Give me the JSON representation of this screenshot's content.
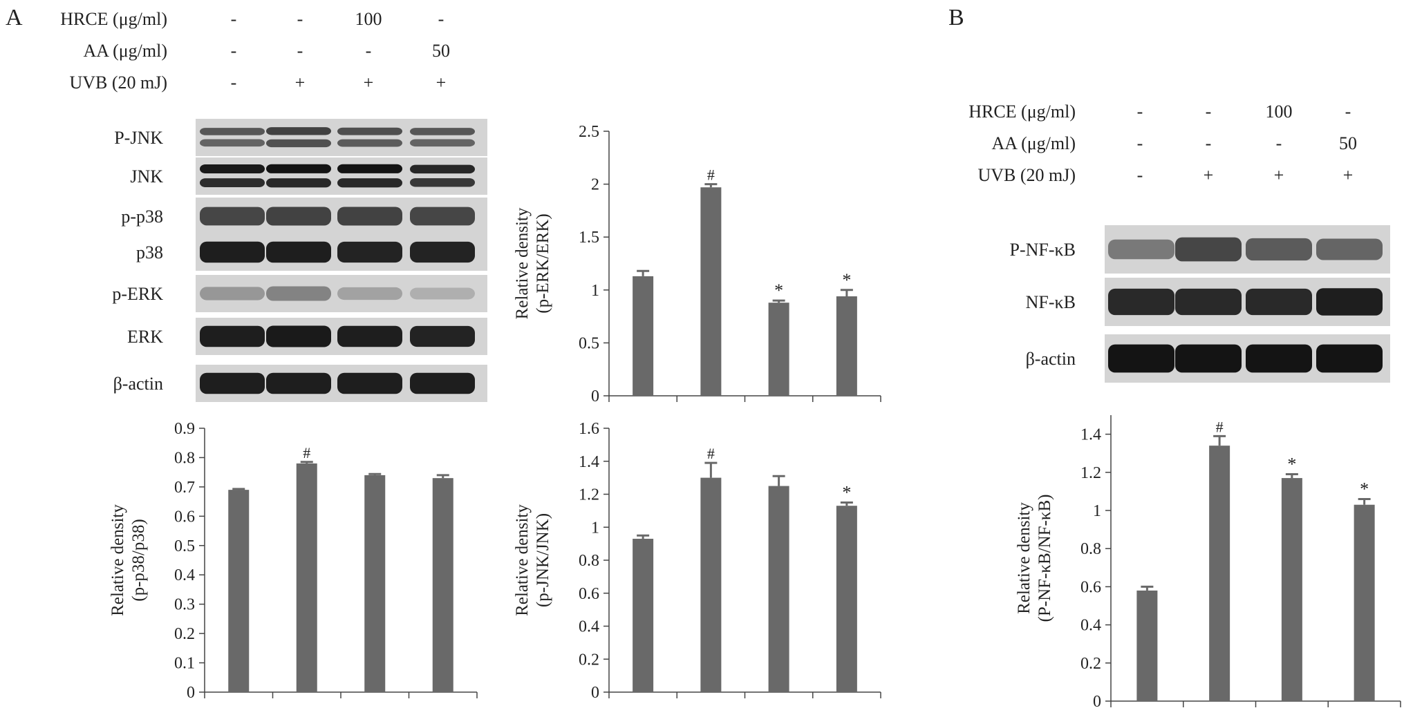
{
  "panels": {
    "A": {
      "letter": "A",
      "treatments": [
        {
          "label": "HRCE (μg/ml)",
          "values": [
            "-",
            "-",
            "100",
            "-"
          ]
        },
        {
          "label": "AA (μg/ml)",
          "values": [
            "-",
            "-",
            "-",
            "50"
          ]
        },
        {
          "label": "UVB (20 mJ)",
          "values": [
            "-",
            "+",
            "+",
            "+"
          ]
        }
      ],
      "blots": [
        {
          "label": "P-JNK",
          "intensity": [
            0.62,
            0.72,
            0.66,
            0.62
          ],
          "double": true
        },
        {
          "label": "JNK",
          "intensity": [
            0.92,
            0.95,
            0.95,
            0.86
          ],
          "double": true
        },
        {
          "label": "p-p38",
          "intensity": [
            0.7,
            0.72,
            0.72,
            0.7
          ],
          "double": false
        },
        {
          "label": "p38",
          "intensity": [
            0.9,
            0.9,
            0.88,
            0.88
          ],
          "double": false
        },
        {
          "label": "p-ERK",
          "intensity": [
            0.3,
            0.4,
            0.25,
            0.18
          ],
          "double": false
        },
        {
          "label": "ERK",
          "intensity": [
            0.9,
            0.92,
            0.9,
            0.88
          ],
          "double": false
        },
        {
          "label": "β-actin",
          "intensity": [
            0.9,
            0.9,
            0.9,
            0.9
          ],
          "double": false
        }
      ]
    },
    "B": {
      "letter": "B",
      "treatments": [
        {
          "label": "HRCE (μg/ml)",
          "values": [
            "-",
            "-",
            "100",
            "-"
          ]
        },
        {
          "label": "AA (μg/ml)",
          "values": [
            "-",
            "-",
            "-",
            "50"
          ]
        },
        {
          "label": "UVB (20 mJ)",
          "values": [
            "-",
            "+",
            "+",
            "+"
          ]
        }
      ],
      "blots": [
        {
          "label": "P-NF-κB",
          "intensity": [
            0.45,
            0.7,
            0.6,
            0.55
          ],
          "double": false
        },
        {
          "label": "NF-κB",
          "intensity": [
            0.85,
            0.85,
            0.85,
            0.9
          ],
          "double": false
        },
        {
          "label": "β-actin",
          "intensity": [
            0.95,
            0.95,
            0.95,
            0.95
          ],
          "double": false
        }
      ]
    }
  },
  "colors": {
    "bar": "#696969",
    "axis": "#444444",
    "text": "#222222",
    "blot_bg": "#d4d4d4",
    "band": "#0a0a0a"
  },
  "chart_data": [
    {
      "id": "erk",
      "type": "bar",
      "ylabel": [
        "Relative density",
        "(p-ERK/ERK)"
      ],
      "values": [
        1.13,
        1.97,
        0.88,
        0.94
      ],
      "errors": [
        0.05,
        0.03,
        0.02,
        0.06
      ],
      "marks": [
        "",
        "#",
        "*",
        "*"
      ],
      "ylim": [
        0,
        2.5
      ],
      "yticks": [
        "0",
        "0.5",
        "1",
        "1.5",
        "2",
        "2.5"
      ]
    },
    {
      "id": "p38",
      "type": "bar",
      "ylabel": [
        "Relative density",
        "(p-p38/p38)"
      ],
      "values": [
        0.69,
        0.78,
        0.74,
        0.73
      ],
      "errors": [
        0.003,
        0.005,
        0.004,
        0.01
      ],
      "marks": [
        "",
        "#",
        "",
        ""
      ],
      "ylim": [
        0,
        0.9
      ],
      "yticks": [
        "0",
        "0.1",
        "0.2",
        "0.3",
        "0.4",
        "0.5",
        "0.6",
        "0.7",
        "0.8",
        "0.9"
      ]
    },
    {
      "id": "jnk",
      "type": "bar",
      "ylabel": [
        "Relative density",
        "(p-JNK/JNK)"
      ],
      "values": [
        0.93,
        1.3,
        1.25,
        1.13
      ],
      "errors": [
        0.02,
        0.09,
        0.06,
        0.02
      ],
      "marks": [
        "",
        "#",
        "",
        "*"
      ],
      "ylim": [
        0,
        1.6
      ],
      "yticks": [
        "0",
        "0.2",
        "0.4",
        "0.6",
        "0.8",
        "1",
        "1.2",
        "1.4",
        "1.6"
      ]
    },
    {
      "id": "nfkb",
      "type": "bar",
      "ylabel": [
        "Relative density",
        "(P-NF-κB/NF-κB)"
      ],
      "values": [
        0.58,
        1.34,
        1.17,
        1.03
      ],
      "errors": [
        0.02,
        0.05,
        0.02,
        0.03
      ],
      "marks": [
        "",
        "#",
        "*",
        "*"
      ],
      "ylim": [
        0,
        1.5
      ],
      "yticks": [
        "0",
        "0.2",
        "0.4",
        "0.6",
        "0.8",
        "1",
        "1.2",
        "1.4"
      ]
    }
  ]
}
